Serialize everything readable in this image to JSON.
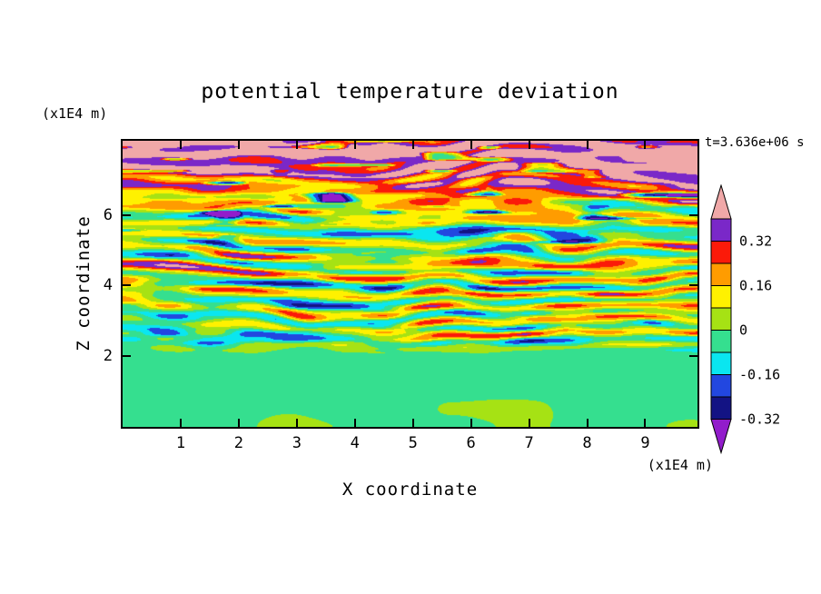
{
  "title": "potential temperature deviation",
  "timestamp_label": "t=3.636e+06 s",
  "axes": {
    "x": {
      "label": "X coordinate",
      "unit": "(x1E4 m)",
      "ticks": [
        1,
        2,
        3,
        4,
        5,
        6,
        7,
        8,
        9
      ],
      "range": [
        0,
        9.9
      ]
    },
    "z": {
      "label": "Z coordinate",
      "unit": "(x1E4 m)",
      "ticks": [
        2,
        4,
        6
      ],
      "range": [
        0,
        8.1
      ]
    }
  },
  "chart_data": {
    "type": "heatmap",
    "title": "potential temperature deviation",
    "xlabel": "X coordinate (x1E4 m)",
    "ylabel": "Z coordinate (x1E4 m)",
    "time_annotation": "t=3.636e+06 s",
    "xlim": [
      0,
      9.9
    ],
    "ylim": [
      0,
      8.1
    ],
    "grid": false,
    "legend_position": "right-colorbar",
    "colorbar": {
      "boundaries": [
        0.4,
        0.32,
        0.24,
        0.16,
        0.08,
        0,
        -0.08,
        -0.16,
        -0.24,
        -0.32
      ],
      "labels": [
        "0.32",
        "0.16",
        "0",
        "-0.16",
        "-0.32"
      ],
      "label_values": [
        0.32,
        0.16,
        0,
        -0.16,
        -0.32
      ],
      "colors_top_to_bottom": {
        "above_max": "#F0A8A8",
        "boxes": [
          "#7A28C8",
          "#FB1A09",
          "#FF9C00",
          "#FFF100",
          "#A6E214",
          "#35DF8F",
          "#0AE6F0",
          "#2247E0",
          "#131384"
        ],
        "below_min": "#921CCB"
      }
    },
    "field_structure": "Stratified-turbulence snapshot of potential temperature deviation: calm green layer with yellow-green swirls below z~2e4 m (values near 0); thin alternating warm (red/orange/yellow, ~+0.1 to +0.35) and cold (cyan/blue/navy, ~-0.1 to -0.35) horizontal streaks between z~2e4 and z~6e4 m; pink background (>0.4) with purple wave bands (0.32-0.4) and occasional sharp warm/cold filaments above z~6e4 m.",
    "generation": {
      "band_wavenumber": 105,
      "seed": 7
    }
  }
}
